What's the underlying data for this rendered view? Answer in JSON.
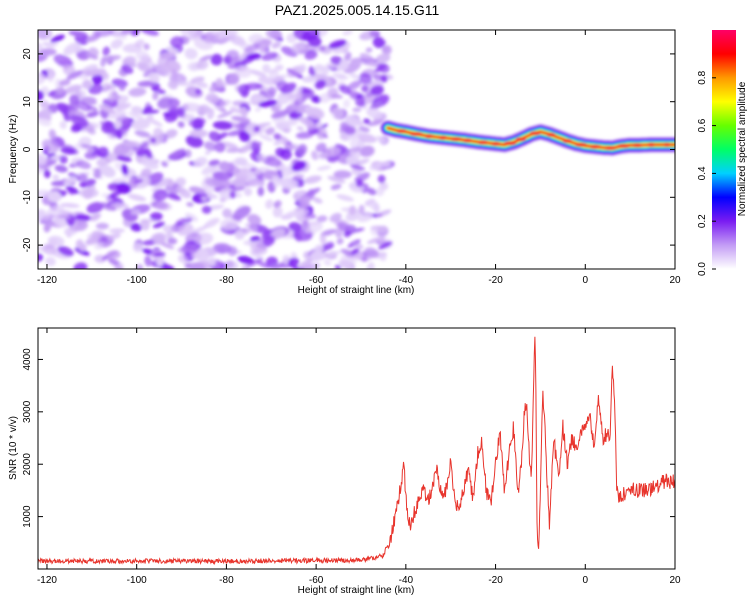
{
  "figure": {
    "title": "PAZ1.2025.005.14.15.G11"
  },
  "chart_data": [
    {
      "type": "heatmap",
      "name": "spectrogram",
      "xlabel": "Height of straight line (km)",
      "ylabel": "Frequency (Hz)",
      "xlim": [
        -122,
        20
      ],
      "ylim": [
        -25,
        25
      ],
      "xticks": [
        -120,
        -100,
        -80,
        -60,
        -40,
        -20,
        0,
        20
      ],
      "yticks": [
        -20,
        -10,
        0,
        10,
        20
      ],
      "noise_region_x": [
        -122,
        -44
      ],
      "noise_color": "#7a1cf2",
      "signal_track": {
        "x": [
          -44,
          -42,
          -40,
          -38,
          -35,
          -30,
          -27,
          -24,
          -21,
          -18,
          -16,
          -14,
          -12,
          -10,
          -8,
          -6,
          -4,
          -2,
          0,
          2,
          4,
          6,
          8,
          10,
          12,
          15,
          20
        ],
        "freq_hz": [
          4.5,
          4.0,
          3.7,
          3.3,
          2.8,
          2.3,
          2.0,
          1.6,
          1.3,
          1.0,
          1.5,
          2.3,
          3.2,
          3.7,
          3.2,
          2.5,
          1.8,
          1.2,
          0.8,
          0.6,
          0.4,
          0.3,
          0.7,
          0.9,
          0.9,
          1.0,
          1.0
        ]
      },
      "colorbar": {
        "label": "Normalized spectral amplitude",
        "ticks": [
          "0.0",
          "0.2",
          "0.4",
          "0.6",
          "0.8"
        ],
        "range": [
          0,
          1
        ],
        "colors": [
          "#ffffff",
          "#c39cf5",
          "#7a1cf2",
          "#0000ff",
          "#00d0ff",
          "#00ff66",
          "#66ff00",
          "#ffff00",
          "#ff9900",
          "#ff0000",
          "#ff0066"
        ]
      },
      "grid": false
    },
    {
      "type": "line",
      "name": "snr",
      "xlabel": "Height of straight line (km)",
      "ylabel": "SNR (10 * v/v)",
      "xlim": [
        -122,
        20
      ],
      "ylim": [
        0,
        4600
      ],
      "xticks": [
        -120,
        -100,
        -80,
        -60,
        -40,
        -20,
        0,
        20
      ],
      "yticks": [
        1000,
        2000,
        3000,
        4000
      ],
      "line_color": "#e8352d",
      "grid": false,
      "series": [
        {
          "x": [
            -122,
            -100,
            -80,
            -60,
            -50,
            -45,
            -43,
            -42,
            -41,
            -40.5,
            -40,
            -39.5,
            -39,
            -38,
            -37,
            -36,
            -35,
            -34,
            -33,
            -32,
            -31,
            -30,
            -29,
            -28,
            -27,
            -26,
            -25,
            -24,
            -23,
            -22,
            -21,
            -20,
            -19,
            -18,
            -17,
            -16,
            -15,
            -14,
            -13.5,
            -13,
            -12.5,
            -12,
            -11.5,
            -11.2,
            -11,
            -10.8,
            -10.5,
            -10,
            -9.5,
            -9,
            -8.5,
            -8,
            -7,
            -6,
            -5,
            -4,
            -3,
            -2,
            -1,
            0,
            1,
            2,
            3,
            4,
            5,
            5.5,
            6,
            6.5,
            7,
            7.5,
            8,
            10,
            12,
            15,
            18,
            20
          ],
          "y": [
            150,
            150,
            150,
            160,
            170,
            250,
            700,
            1200,
            1600,
            2000,
            1400,
            900,
            800,
            1100,
            1300,
            1500,
            1300,
            1600,
            1900,
            1400,
            1500,
            2050,
            1300,
            1100,
            1600,
            1900,
            1300,
            2200,
            2400,
            1400,
            1300,
            2000,
            2600,
            1500,
            2200,
            2700,
            1400,
            2300,
            3100,
            3000,
            2200,
            1700,
            3500,
            4500,
            3500,
            1000,
            300,
            1400,
            3400,
            2800,
            1700,
            900,
            2500,
            1700,
            2700,
            2000,
            2500,
            2300,
            2600,
            2800,
            3000,
            2300,
            3300,
            2500,
            2600,
            2300,
            3800,
            3300,
            1600,
            1300,
            1400,
            1500,
            1500,
            1550,
            1700,
            1650
          ]
        }
      ]
    }
  ]
}
